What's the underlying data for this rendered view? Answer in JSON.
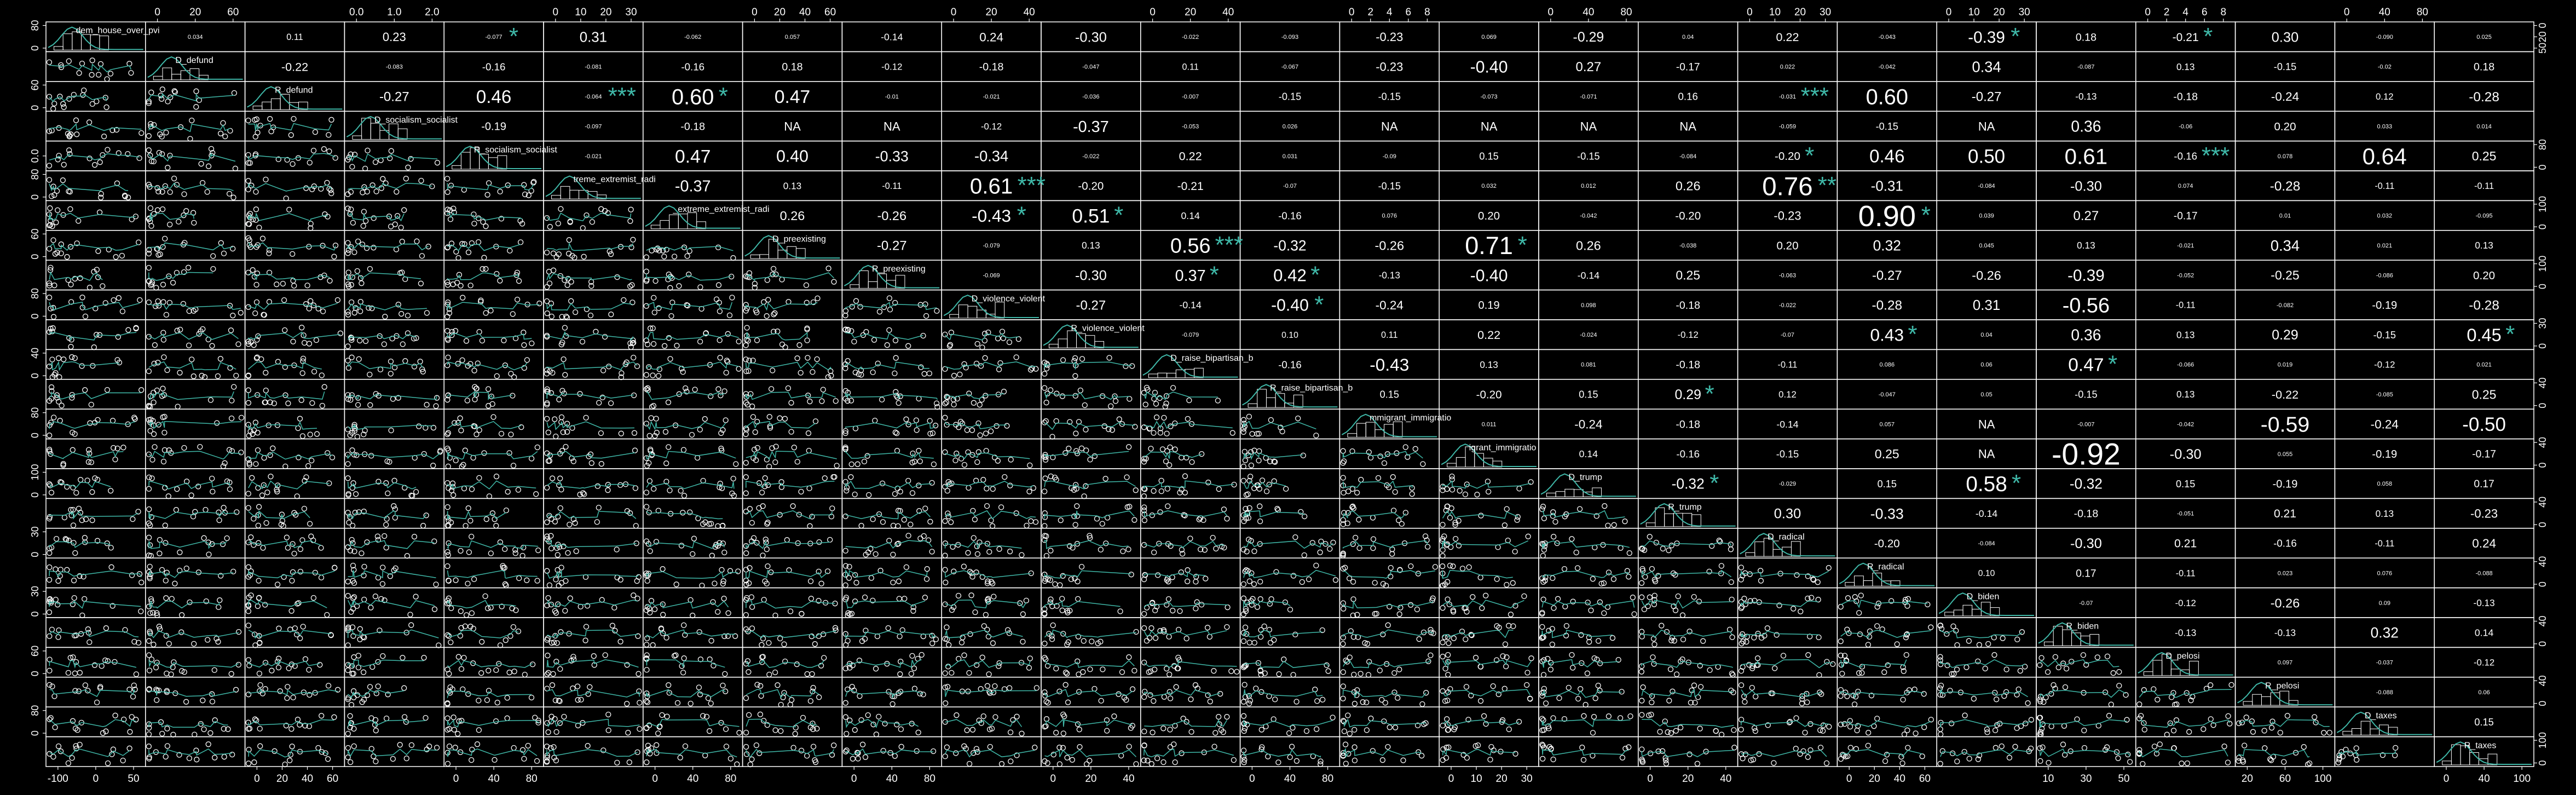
{
  "chart_data": {
    "type": "scatter",
    "variables": [
      "dem_house_over_pvi",
      "D_defund",
      "R_defund",
      "D_socialism_socialist",
      "R_socialism_socialist",
      "D_extreme_extremist_radical",
      "R_extreme_extremist_radical",
      "D_preexisting",
      "R_preexisting",
      "D_violence_violent",
      "R_violence_violent",
      "D_raise_bipartisan_b",
      "R_raise_bipartisan_b",
      "D_immigrant_immigration",
      "R_immigrant_immigration",
      "D_trump",
      "R_trump",
      "D_radical",
      "R_radical",
      "D_biden",
      "R_biden",
      "D_pelosi",
      "R_pelosi",
      "D_taxes",
      "R_taxes"
    ],
    "diagonal_labels": [
      "dem_house_over_pvi",
      "D_defund",
      "R_defund",
      "D_socialism_socialist",
      "R_socialism_socialist",
      "treme_extremist_radi",
      "_extreme_extremist_radi",
      "D_preexisting",
      "R_preexisting",
      "D_violence_violent",
      "R_violence_violent",
      "D_raise_bipartisan_b",
      "R_raise_bipartisan_b",
      "mmigrant_immigratio",
      "igrant_immigratio",
      "D_trump",
      "R_trump",
      "D_radical",
      "R_radical",
      "D_biden",
      "R_biden",
      "D_pelosi",
      "R_pelosi",
      "D_taxes",
      "R_taxes"
    ],
    "correlations": [
      [
        "0.034",
        "0.11",
        "0.23",
        "-0.077",
        "0.31",
        "-0.062",
        "0.057",
        "-0.14",
        "0.24",
        "-0.30",
        "-0.022",
        "-0.093",
        "-0.23",
        "0.069",
        "-0.29",
        "0.04",
        "0.22",
        "-0.043",
        "-0.39",
        "0.18",
        "-0.21",
        "0.30",
        "-0.090",
        "0.025"
      ],
      [
        "-0.22",
        "-0.083",
        "-0.16",
        "-0.081",
        "-0.16",
        "0.18",
        "-0.12",
        "-0.18",
        "-0.047",
        "0.11",
        "-0.067",
        "-0.23",
        "-0.40",
        "0.27",
        "-0.17",
        "0.022",
        "-0.042",
        "0.34",
        "-0.087",
        "0.13",
        "-0.15",
        "-0.02",
        "0.18"
      ],
      [
        "-0.27",
        "0.46",
        "-0.064",
        "0.60",
        "0.47",
        "-0.01",
        "-0.021",
        "-0.036",
        "-0.007",
        "-0.15",
        "-0.15",
        "-0.073",
        "-0.071",
        "0.16",
        "-0.031",
        "0.60",
        "-0.27",
        "-0.13",
        "-0.18",
        "-0.24",
        "0.12",
        "-0.28"
      ],
      [
        "-0.19",
        "-0.097",
        "-0.18",
        "NA",
        "NA",
        "-0.12",
        "-0.37",
        "-0.053",
        "0.026",
        "NA",
        "NA",
        "NA",
        "NA",
        "-0.059",
        "-0.15",
        "NA",
        "0.36",
        "-0.06",
        "0.20",
        "0.033",
        "0.014"
      ],
      [
        "-0.021",
        "0.47",
        "0.40",
        "-0.33",
        "-0.34",
        "-0.022",
        "0.22",
        "0.031",
        "-0.09",
        "0.15",
        "-0.15",
        "-0.084",
        "-0.20",
        "0.46",
        "0.50",
        "0.61",
        "-0.16",
        "0.078",
        "0.64",
        "0.25"
      ],
      [
        "-0.37",
        "0.13",
        "-0.11",
        "0.61",
        "-0.20",
        "-0.21",
        "-0.07",
        "-0.15",
        "0.032",
        "0.012",
        "0.26",
        "0.76",
        "-0.31",
        "-0.084",
        "-0.30",
        "0.074",
        "-0.28",
        "-0.11",
        "-0.11"
      ],
      [
        "0.26",
        "-0.26",
        "-0.43",
        "0.51",
        "0.14",
        "-0.16",
        "0.076",
        "0.20",
        "-0.042",
        "-0.20",
        "-0.23",
        "0.90",
        "0.039",
        "0.27",
        "-0.17",
        "0.01",
        "0.032",
        "-0.095"
      ],
      [
        "-0.27",
        "-0.079",
        "0.13",
        "0.56",
        "-0.32",
        "-0.26",
        "0.71",
        "0.26",
        "-0.038",
        "0.20",
        "0.32",
        "0.045",
        "0.13",
        "-0.021",
        "0.34",
        "0.021",
        "0.13"
      ],
      [
        "-0.069",
        "-0.30",
        "0.37",
        "0.42",
        "-0.13",
        "-0.40",
        "-0.14",
        "0.25",
        "-0.063",
        "-0.27",
        "-0.26",
        "-0.39",
        "-0.052",
        "-0.25",
        "-0.086",
        "0.20"
      ],
      [
        "-0.27",
        "-0.14",
        "-0.40",
        "-0.24",
        "0.19",
        "0.098",
        "-0.18",
        "-0.022",
        "-0.28",
        "0.31",
        "-0.56",
        "-0.11",
        "-0.082",
        "-0.19",
        "-0.28"
      ],
      [
        "-0.079",
        "0.10",
        "0.11",
        "0.22",
        "-0.024",
        "-0.12",
        "-0.07",
        "0.43",
        "0.04",
        "0.36",
        "0.13",
        "0.29",
        "-0.15",
        "0.45"
      ],
      [
        "-0.16",
        "-0.43",
        "0.13",
        "0.081",
        "-0.18",
        "-0.11",
        "0.086",
        "0.06",
        "0.47",
        "-0.066",
        "0.019",
        "-0.12",
        "0.021"
      ],
      [
        "0.15",
        "-0.20",
        "0.15",
        "0.29",
        "0.12",
        "-0.047",
        "0.05",
        "-0.15",
        "0.13",
        "-0.22",
        "-0.085",
        "0.25"
      ],
      [
        "0.011",
        "-0.24",
        "-0.18",
        "-0.14",
        "0.057",
        "NA",
        "-0.007",
        "-0.042",
        "-0.59",
        "-0.24",
        "-0.50"
      ],
      [
        "0.14",
        "-0.16",
        "-0.15",
        "0.25",
        "NA",
        "-0.92",
        "-0.30",
        "0.055",
        "-0.19",
        "-0.17"
      ],
      [
        "-0.32",
        "-0.029",
        "0.15",
        "0.58",
        "-0.32",
        "0.15",
        "-0.19",
        "0.058",
        "0.17"
      ],
      [
        "0.30",
        "-0.33",
        "-0.14",
        "-0.18",
        "-0.051",
        "0.21",
        "0.13",
        "-0.23"
      ],
      [
        "-0.20",
        "-0.084",
        "-0.30",
        "0.21",
        "-0.16",
        "-0.11",
        "0.24"
      ],
      [
        "0.10",
        "0.17",
        "-0.11",
        "0.023",
        "0.076",
        "-0.088"
      ],
      [
        "-0.07",
        "-0.12",
        "-0.26",
        "0.09",
        "-0.13"
      ],
      [
        "-0.13",
        "-0.13",
        "0.32",
        "0.14"
      ],
      [
        "0.097",
        "-0.037",
        "-0.12"
      ],
      [
        "-0.088",
        "0.06"
      ],
      [
        "0.15"
      ]
    ],
    "significance": [
      {
        "i": 0,
        "j": 4,
        "stars": "*"
      },
      {
        "i": 0,
        "j": 19,
        "stars": "*"
      },
      {
        "i": 0,
        "j": 21,
        "stars": "*"
      },
      {
        "i": 2,
        "j": 5,
        "stars": "***"
      },
      {
        "i": 2,
        "j": 6,
        "stars": "*"
      },
      {
        "i": 2,
        "j": 17,
        "stars": "***"
      },
      {
        "i": 4,
        "j": 17,
        "stars": "*"
      },
      {
        "i": 4,
        "j": 21,
        "stars": "***"
      },
      {
        "i": 5,
        "j": 9,
        "stars": "***"
      },
      {
        "i": 5,
        "j": 17,
        "stars": "**"
      },
      {
        "i": 6,
        "j": 9,
        "stars": "*"
      },
      {
        "i": 6,
        "j": 10,
        "stars": "*"
      },
      {
        "i": 6,
        "j": 18,
        "stars": "*"
      },
      {
        "i": 7,
        "j": 11,
        "stars": "***"
      },
      {
        "i": 7,
        "j": 14,
        "stars": "*"
      },
      {
        "i": 8,
        "j": 11,
        "stars": "*"
      },
      {
        "i": 8,
        "j": 12,
        "stars": "*"
      },
      {
        "i": 9,
        "j": 12,
        "stars": "*"
      },
      {
        "i": 10,
        "j": 18,
        "stars": "*"
      },
      {
        "i": 10,
        "j": 24,
        "stars": "*"
      },
      {
        "i": 11,
        "j": 20,
        "stars": "*"
      },
      {
        "i": 12,
        "j": 16,
        "stars": "*"
      },
      {
        "i": 15,
        "j": 16,
        "stars": "*"
      },
      {
        "i": 15,
        "j": 19,
        "stars": "*"
      }
    ],
    "top_axis_ticks": [
      {
        "col": 1,
        "ticks": [
          "0",
          "20",
          "60"
        ]
      },
      {
        "col": 3,
        "ticks": [
          "0.0",
          "1.0",
          "2.0"
        ]
      },
      {
        "col": 5,
        "ticks": [
          "0",
          "10",
          "20",
          "30"
        ]
      },
      {
        "col": 7,
        "ticks": [
          "0",
          "20",
          "40",
          "60"
        ]
      },
      {
        "col": 9,
        "ticks": [
          "0",
          "20",
          "40"
        ]
      },
      {
        "col": 11,
        "ticks": [
          "0",
          "20",
          "40"
        ]
      },
      {
        "col": 13,
        "ticks": [
          "0",
          "2",
          "4",
          "6",
          "8"
        ]
      },
      {
        "col": 15,
        "ticks": [
          "0",
          "40",
          "80"
        ]
      },
      {
        "col": 17,
        "ticks": [
          "0",
          "10",
          "20",
          "30"
        ]
      },
      {
        "col": 19,
        "ticks": [
          "0",
          "10",
          "20",
          "30"
        ]
      },
      {
        "col": 21,
        "ticks": [
          "0",
          "2",
          "4",
          "6",
          "8"
        ]
      },
      {
        "col": 23,
        "ticks": [
          "0",
          "40",
          "80"
        ]
      }
    ],
    "bottom_axis_ticks": [
      {
        "col": 0,
        "ticks": [
          "-100",
          "0",
          "50"
        ]
      },
      {
        "col": 2,
        "ticks": [
          "0",
          "20",
          "40",
          "60"
        ]
      },
      {
        "col": 4,
        "ticks": [
          "0",
          "40",
          "80"
        ]
      },
      {
        "col": 6,
        "ticks": [
          "0",
          "40",
          "80"
        ]
      },
      {
        "col": 8,
        "ticks": [
          "0",
          "40",
          "80"
        ]
      },
      {
        "col": 10,
        "ticks": [
          "0",
          "20",
          "40"
        ]
      },
      {
        "col": 12,
        "ticks": [
          "0",
          "40",
          "80"
        ]
      },
      {
        "col": 14,
        "ticks": [
          "0",
          "10",
          "20",
          "30"
        ]
      },
      {
        "col": 16,
        "ticks": [
          "0",
          "20",
          "40"
        ]
      },
      {
        "col": 18,
        "ticks": [
          "0",
          "20",
          "40",
          "60"
        ]
      },
      {
        "col": 20,
        "ticks": [
          "10",
          "30",
          "50"
        ]
      },
      {
        "col": 22,
        "ticks": [
          "20",
          "60",
          "100"
        ]
      },
      {
        "col": 24,
        "ticks": [
          "0",
          "40",
          "100"
        ]
      }
    ],
    "left_axis_ticks": [
      {
        "row": 0,
        "ticks": [
          "80",
          "0"
        ]
      },
      {
        "row": 2,
        "ticks": [
          "60",
          "0"
        ]
      },
      {
        "row": 4,
        "ticks": [
          "0.0"
        ]
      },
      {
        "row": 5,
        "ticks": [
          "80",
          "0"
        ]
      },
      {
        "row": 7,
        "ticks": [
          "60",
          "0"
        ]
      },
      {
        "row": 9,
        "ticks": [
          "80",
          "0"
        ]
      },
      {
        "row": 11,
        "ticks": [
          "40",
          "0"
        ]
      },
      {
        "row": 13,
        "ticks": [
          "80",
          "0"
        ]
      },
      {
        "row": 15,
        "ticks": [
          "100",
          "0"
        ]
      },
      {
        "row": 17,
        "ticks": [
          "30",
          "0"
        ]
      },
      {
        "row": 19,
        "ticks": [
          "30",
          "0"
        ]
      },
      {
        "row": 21,
        "ticks": [
          "60",
          "0"
        ]
      },
      {
        "row": 23,
        "ticks": [
          "80",
          "0"
        ]
      }
    ],
    "right_axis_ticks": [
      {
        "row": 0,
        "ticks": [
          "0",
          "20",
          "50"
        ]
      },
      {
        "row": 4,
        "ticks": [
          "80",
          "0"
        ]
      },
      {
        "row": 6,
        "ticks": [
          "100",
          "0"
        ]
      },
      {
        "row": 8,
        "ticks": [
          "100",
          "0"
        ]
      },
      {
        "row": 10,
        "ticks": [
          "30",
          "0"
        ]
      },
      {
        "row": 12,
        "ticks": [
          "40",
          "0"
        ]
      },
      {
        "row": 14,
        "ticks": [
          "40",
          "0"
        ]
      },
      {
        "row": 16,
        "ticks": [
          "40",
          "0"
        ]
      },
      {
        "row": 18,
        "ticks": [
          "40",
          "0"
        ]
      },
      {
        "row": 20,
        "ticks": [
          "40",
          "0"
        ]
      },
      {
        "row": 22,
        "ticks": [
          "40",
          "0"
        ]
      },
      {
        "row": 24,
        "ticks": [
          "100",
          "0"
        ]
      }
    ],
    "colors": {
      "background": "#000000",
      "panel_border": "#ffffff",
      "point": "#ffffff",
      "smooth": "#3fb8a8",
      "star": "#3fb8a8",
      "text": "#ffffff"
    },
    "grid": false,
    "legend": "none"
  }
}
